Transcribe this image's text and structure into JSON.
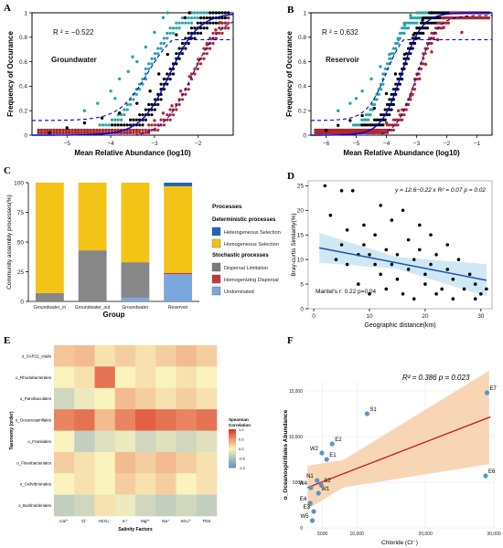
{
  "panels": {
    "A": {
      "letter": "A",
      "r2": "R ² = −0.522",
      "site": "Groundwater",
      "xlabel": "Mean Relative Abundance (log10)",
      "ylabel": "Frequency of Occurance",
      "xticks": [
        "−5",
        "−4",
        "−3",
        "−2"
      ],
      "yticks": [
        "0",
        "0.2",
        "0.4",
        "0.6",
        "0.8",
        "1"
      ]
    },
    "B": {
      "letter": "B",
      "r2": "R ² = 0.632",
      "site": "Reservoir",
      "xlabel": "Mean Relative Abundance (log10)",
      "ylabel": "Frequency of Occurance",
      "xticks": [
        "−6",
        "−5",
        "−4",
        "−3",
        "−2",
        "−1"
      ],
      "yticks": [
        "0",
        "0.2",
        "0.4",
        "0.6",
        "0.8",
        "1"
      ]
    },
    "C": {
      "letter": "C",
      "ylabel": "Community assembly processes(%)",
      "xlabel": "Group",
      "yticks": [
        "0",
        "25",
        "50",
        "75",
        "100"
      ],
      "legend_title": "Processes",
      "legend_det_title": "Deterministic processes",
      "legend_sto_title": "Stochastic processes",
      "legend_items": [
        {
          "label": "Heterogeneous Selection",
          "color": "#1f63b4"
        },
        {
          "label": "Homogeneous Selection",
          "color": "#f3c316"
        },
        {
          "label": "Dispersal Limitation",
          "color": "#7a7a7a"
        },
        {
          "label": "Homogenizing Dispersal",
          "color": "#c0393b"
        },
        {
          "label": "Undominated",
          "color": "#7aa7dc"
        }
      ]
    },
    "D": {
      "letter": "D",
      "equation": "y = 12.6−0.22 x   R² = 0.07   p = 0.02",
      "mantel": "Mantel's r: 0.22  p=0.04",
      "xlabel": "Geographic distance(km)",
      "ylabel": "Bray-curtis Similarity(%)",
      "xticks": [
        "0",
        "10",
        "20",
        "30"
      ],
      "yticks": [
        "0",
        "5",
        "10",
        "15",
        "20",
        "25"
      ]
    },
    "E": {
      "letter": "E",
      "ylabel": "Taxonomy (order)",
      "xlabel": "Salinity Factors",
      "rows": [
        "o_SAR11_clade",
        "o_Rhodobacterales",
        "o_Parvibaculales",
        "o_Oceanospirillales",
        "o_Frankiales",
        "o_Flavobacteriales",
        "o_Cellvibrionales",
        "o_Burkholderiales"
      ],
      "cols": [
        "Ca²⁺",
        "Cl⁻",
        "HCO₃⁻",
        "K⁺",
        "Mg²⁺",
        "Na⁺",
        "SO₄²⁻",
        "TDS"
      ],
      "legend_title": "Spearman Correlation",
      "legend_ticks": [
        "1.0",
        "0.5",
        "0.0",
        "-0.5",
        "-1.0"
      ]
    },
    "F": {
      "letter": "F",
      "stats": "R² = 0.386   p = 0.023",
      "xlabel": "Chloride (Cl⁻)",
      "ylabel": "o_Oceanospirillales Abundance",
      "xticks": [
        "5000",
        "10,000",
        "20,000",
        "30,000"
      ],
      "yticks": [
        "0",
        "5000",
        "10,000",
        "15,000"
      ]
    }
  },
  "colors": {
    "teal": "#25a6a6",
    "black": "#000000",
    "red": "#b5262b",
    "blue_line": "#0000cc",
    "bar_blue": "#1f63b4",
    "bar_yellow": "#f3c316",
    "bar_gray": "#7a7a7a",
    "bar_red": "#c0393b",
    "bar_lightblue": "#7aa7dc",
    "reg_blue": "#1f4fb4",
    "reg_band": "#bfe0f0",
    "f_line": "#c0272d",
    "f_band": "#f7cfa8",
    "f_point": "#5b94c9"
  },
  "chart_data": [
    {
      "panel": "A",
      "type": "scatter",
      "title": "",
      "xlabel": "Mean Relative Abundance (log10)",
      "ylabel": "Frequency of Occurance",
      "xlim": [
        -5.8,
        -1.2
      ],
      "ylim": [
        0,
        1
      ],
      "annotation": "R ² = −0.522",
      "fitted_curve": {
        "midpoint_x": -2.65
      },
      "series": [
        {
          "group": "above",
          "color": "teal",
          "points": [
            [
              -4.6,
              0.2
            ],
            [
              -4.3,
              0.26
            ],
            [
              -4.0,
              0.36
            ],
            [
              -3.8,
              0.46
            ],
            [
              -3.6,
              0.52
            ],
            [
              -3.4,
              0.6
            ],
            [
              -3.2,
              0.72
            ],
            [
              -3.0,
              0.84
            ],
            [
              -2.8,
              0.96
            ],
            [
              -2.7,
              1.0
            ],
            [
              -3.9,
              0.3
            ],
            [
              -3.5,
              0.64
            ]
          ]
        },
        {
          "group": "neutral",
          "color": "black",
          "points": [
            [
              -5.4,
              0.02
            ],
            [
              -5.0,
              0.06
            ],
            [
              -4.6,
              0.1
            ],
            [
              -4.2,
              0.14
            ],
            [
              -3.8,
              0.18
            ],
            [
              -3.4,
              0.26
            ],
            [
              -3.1,
              0.36
            ],
            [
              -2.9,
              0.5
            ],
            [
              -2.7,
              0.66
            ],
            [
              -2.5,
              0.82
            ],
            [
              -2.3,
              0.96
            ],
            [
              -2.2,
              1.0
            ]
          ]
        },
        {
          "group": "below",
          "color": "red",
          "points": [
            [
              -3.4,
              0.04
            ],
            [
              -3.0,
              0.12
            ],
            [
              -2.6,
              0.24
            ],
            [
              -2.4,
              0.36
            ],
            [
              -2.2,
              0.48
            ],
            [
              -2.0,
              0.62
            ],
            [
              -1.8,
              0.74
            ],
            [
              -1.6,
              0.86
            ],
            [
              -1.5,
              0.92
            ],
            [
              -2.8,
              0.18
            ]
          ]
        }
      ]
    },
    {
      "panel": "B",
      "type": "scatter",
      "title": "",
      "xlabel": "Mean Relative Abundance (log10)",
      "ylabel": "Frequency of Occurance",
      "xlim": [
        -6.5,
        -0.5
      ],
      "ylim": [
        0,
        1
      ],
      "annotation": "R ² = 0.632",
      "fitted_curve": {
        "midpoint_x": -3.5
      },
      "series": [
        {
          "group": "above",
          "color": "teal",
          "points": [
            [
              -5.6,
              0.2
            ],
            [
              -5.2,
              0.26
            ],
            [
              -4.8,
              0.36
            ],
            [
              -4.5,
              0.46
            ],
            [
              -4.2,
              0.56
            ],
            [
              -3.9,
              0.66
            ],
            [
              -3.6,
              0.78
            ],
            [
              -3.4,
              0.9
            ],
            [
              -3.2,
              0.98
            ],
            [
              -5.0,
              0.3
            ]
          ]
        },
        {
          "group": "neutral",
          "color": "black",
          "points": [
            [
              -6.0,
              0.04
            ],
            [
              -5.6,
              0.08
            ],
            [
              -5.2,
              0.12
            ],
            [
              -4.8,
              0.16
            ],
            [
              -4.4,
              0.22
            ],
            [
              -4.0,
              0.34
            ],
            [
              -3.7,
              0.5
            ],
            [
              -3.4,
              0.66
            ],
            [
              -3.1,
              0.82
            ],
            [
              -2.8,
              0.94
            ],
            [
              -2.5,
              1.0
            ]
          ]
        },
        {
          "group": "below",
          "color": "red",
          "points": [
            [
              -4.0,
              0.1
            ],
            [
              -3.6,
              0.2
            ],
            [
              -3.2,
              0.32
            ],
            [
              -2.9,
              0.46
            ],
            [
              -2.7,
              0.58
            ],
            [
              -2.5,
              0.68
            ],
            [
              -2.3,
              0.78
            ],
            [
              -2.1,
              0.88
            ],
            [
              -1.5,
              0.84
            ]
          ]
        }
      ]
    },
    {
      "panel": "C",
      "type": "bar",
      "stacked": true,
      "title": "",
      "xlabel": "Group",
      "ylabel": "Community assembly processes(%)",
      "ylim": [
        0,
        100
      ],
      "categories": [
        "Groundwater_in",
        "Groundwater_out",
        "Groundwater",
        "Reservoir"
      ],
      "series": [
        {
          "name": "Undominated",
          "values": [
            0,
            0,
            3,
            23
          ]
        },
        {
          "name": "Homogenizing Dispersal",
          "values": [
            0,
            0,
            0,
            1
          ]
        },
        {
          "name": "Dispersal Limitation",
          "values": [
            7,
            43,
            30,
            0
          ]
        },
        {
          "name": "Homogeneous Selection",
          "values": [
            93,
            57,
            67,
            73
          ]
        },
        {
          "name": "Heterogeneous Selection",
          "values": [
            0,
            0,
            0,
            3
          ]
        }
      ],
      "legend": "right"
    },
    {
      "panel": "D",
      "type": "scatter",
      "title": "",
      "xlabel": "Geographic distance(km)",
      "ylabel": "Bray-curtis Similarity(%)",
      "xlim": [
        -1,
        32
      ],
      "ylim": [
        0,
        26
      ],
      "regression": {
        "intercept": 12.6,
        "slope": -0.22,
        "r2": 0.07,
        "p": 0.02
      },
      "points": [
        [
          2,
          25
        ],
        [
          3,
          19
        ],
        [
          4,
          10
        ],
        [
          5,
          24
        ],
        [
          6,
          9
        ],
        [
          6,
          16
        ],
        [
          7,
          24
        ],
        [
          8,
          5
        ],
        [
          9,
          13
        ],
        [
          9,
          17
        ],
        [
          10,
          3
        ],
        [
          10,
          11
        ],
        [
          11,
          15
        ],
        [
          12,
          7
        ],
        [
          12,
          21
        ],
        [
          13,
          4
        ],
        [
          13,
          12
        ],
        [
          14,
          9
        ],
        [
          14,
          18
        ],
        [
          15,
          6
        ],
        [
          15,
          11
        ],
        [
          16,
          3
        ],
        [
          16,
          20
        ],
        [
          17,
          8
        ],
        [
          17,
          14
        ],
        [
          18,
          2
        ],
        [
          18,
          10
        ],
        [
          19,
          12
        ],
        [
          19,
          17
        ],
        [
          20,
          5
        ],
        [
          20,
          7
        ],
        [
          21,
          9
        ],
        [
          21,
          15
        ],
        [
          22,
          3
        ],
        [
          22,
          11
        ],
        [
          23,
          4
        ],
        [
          24,
          8
        ],
        [
          24,
          13
        ],
        [
          25,
          2
        ],
        [
          25,
          6
        ],
        [
          26,
          10
        ],
        [
          27,
          4
        ],
        [
          28,
          7
        ],
        [
          29,
          2
        ],
        [
          29,
          5
        ],
        [
          30,
          3
        ],
        [
          31,
          4
        ],
        [
          5,
          13
        ],
        [
          8,
          11
        ],
        [
          11,
          9
        ]
      ]
    },
    {
      "panel": "E",
      "type": "heatmap",
      "title": "",
      "xlabel": "Salinity Factors",
      "ylabel": "Taxonomy (order)",
      "rows": [
        "o_SAR11_clade",
        "o_Rhodobacterales",
        "o_Parvibaculales",
        "o_Oceanospirillales",
        "o_Frankiales",
        "o_Flavobacteriales",
        "o_Cellvibrionales",
        "o_Burkholderiales"
      ],
      "cols": [
        "Ca²⁺",
        "Cl⁻",
        "HCO₃⁻",
        "K⁺",
        "Mg²⁺",
        "Na⁺",
        "SO₄²⁻",
        "TDS"
      ],
      "values": [
        [
          0.25,
          0.3,
          0.1,
          0.2,
          0.1,
          0.2,
          0.3,
          0.2
        ],
        [
          0.0,
          0.1,
          0.7,
          0.0,
          0.1,
          0.0,
          0.1,
          0.0
        ],
        [
          -0.3,
          -0.1,
          0.0,
          0.3,
          0.2,
          0.1,
          0.2,
          0.1
        ],
        [
          0.6,
          0.7,
          0.3,
          0.6,
          0.8,
          0.7,
          0.6,
          0.7
        ],
        [
          0.0,
          -0.4,
          -0.2,
          -0.1,
          -0.3,
          -0.2,
          -0.3,
          -0.2
        ],
        [
          0.2,
          0.1,
          0.0,
          0.3,
          0.2,
          0.3,
          0.2,
          0.1
        ],
        [
          0.0,
          0.1,
          0.0,
          0.2,
          0.1,
          0.2,
          0.0,
          0.1
        ],
        [
          -0.4,
          -0.3,
          0.1,
          -0.1,
          -0.3,
          -0.4,
          -0.3,
          -0.4
        ]
      ],
      "colorbar_range": [
        -1,
        1
      ]
    },
    {
      "panel": "F",
      "type": "scatter",
      "title": "",
      "xlabel": "Chloride (Cl⁻)",
      "ylabel": "o_Oceanospirillales Abundance",
      "xlim": [
        2500,
        30000
      ],
      "ylim": [
        0,
        16000
      ],
      "regression": {
        "intercept": 3600,
        "slope": 0.29
      },
      "points": [
        {
          "label": "E7",
          "x": 29000,
          "y": 14800
        },
        {
          "label": "S1",
          "x": 11500,
          "y": 12500
        },
        {
          "label": "E6",
          "x": 28800,
          "y": 5700
        },
        {
          "label": "E2",
          "x": 6400,
          "y": 9200
        },
        {
          "label": "W2",
          "x": 4900,
          "y": 8200
        },
        {
          "label": "E1",
          "x": 5600,
          "y": 7500
        },
        {
          "label": "N1",
          "x": 4200,
          "y": 5200
        },
        {
          "label": "S2",
          "x": 4800,
          "y": 4700
        },
        {
          "label": "W4",
          "x": 3300,
          "y": 4400
        },
        {
          "label": "W1",
          "x": 4400,
          "y": 3800
        },
        {
          "label": "E4",
          "x": 3200,
          "y": 2700
        },
        {
          "label": "E3",
          "x": 3700,
          "y": 1800
        },
        {
          "label": "W5",
          "x": 3500,
          "y": 800
        }
      ]
    }
  ]
}
